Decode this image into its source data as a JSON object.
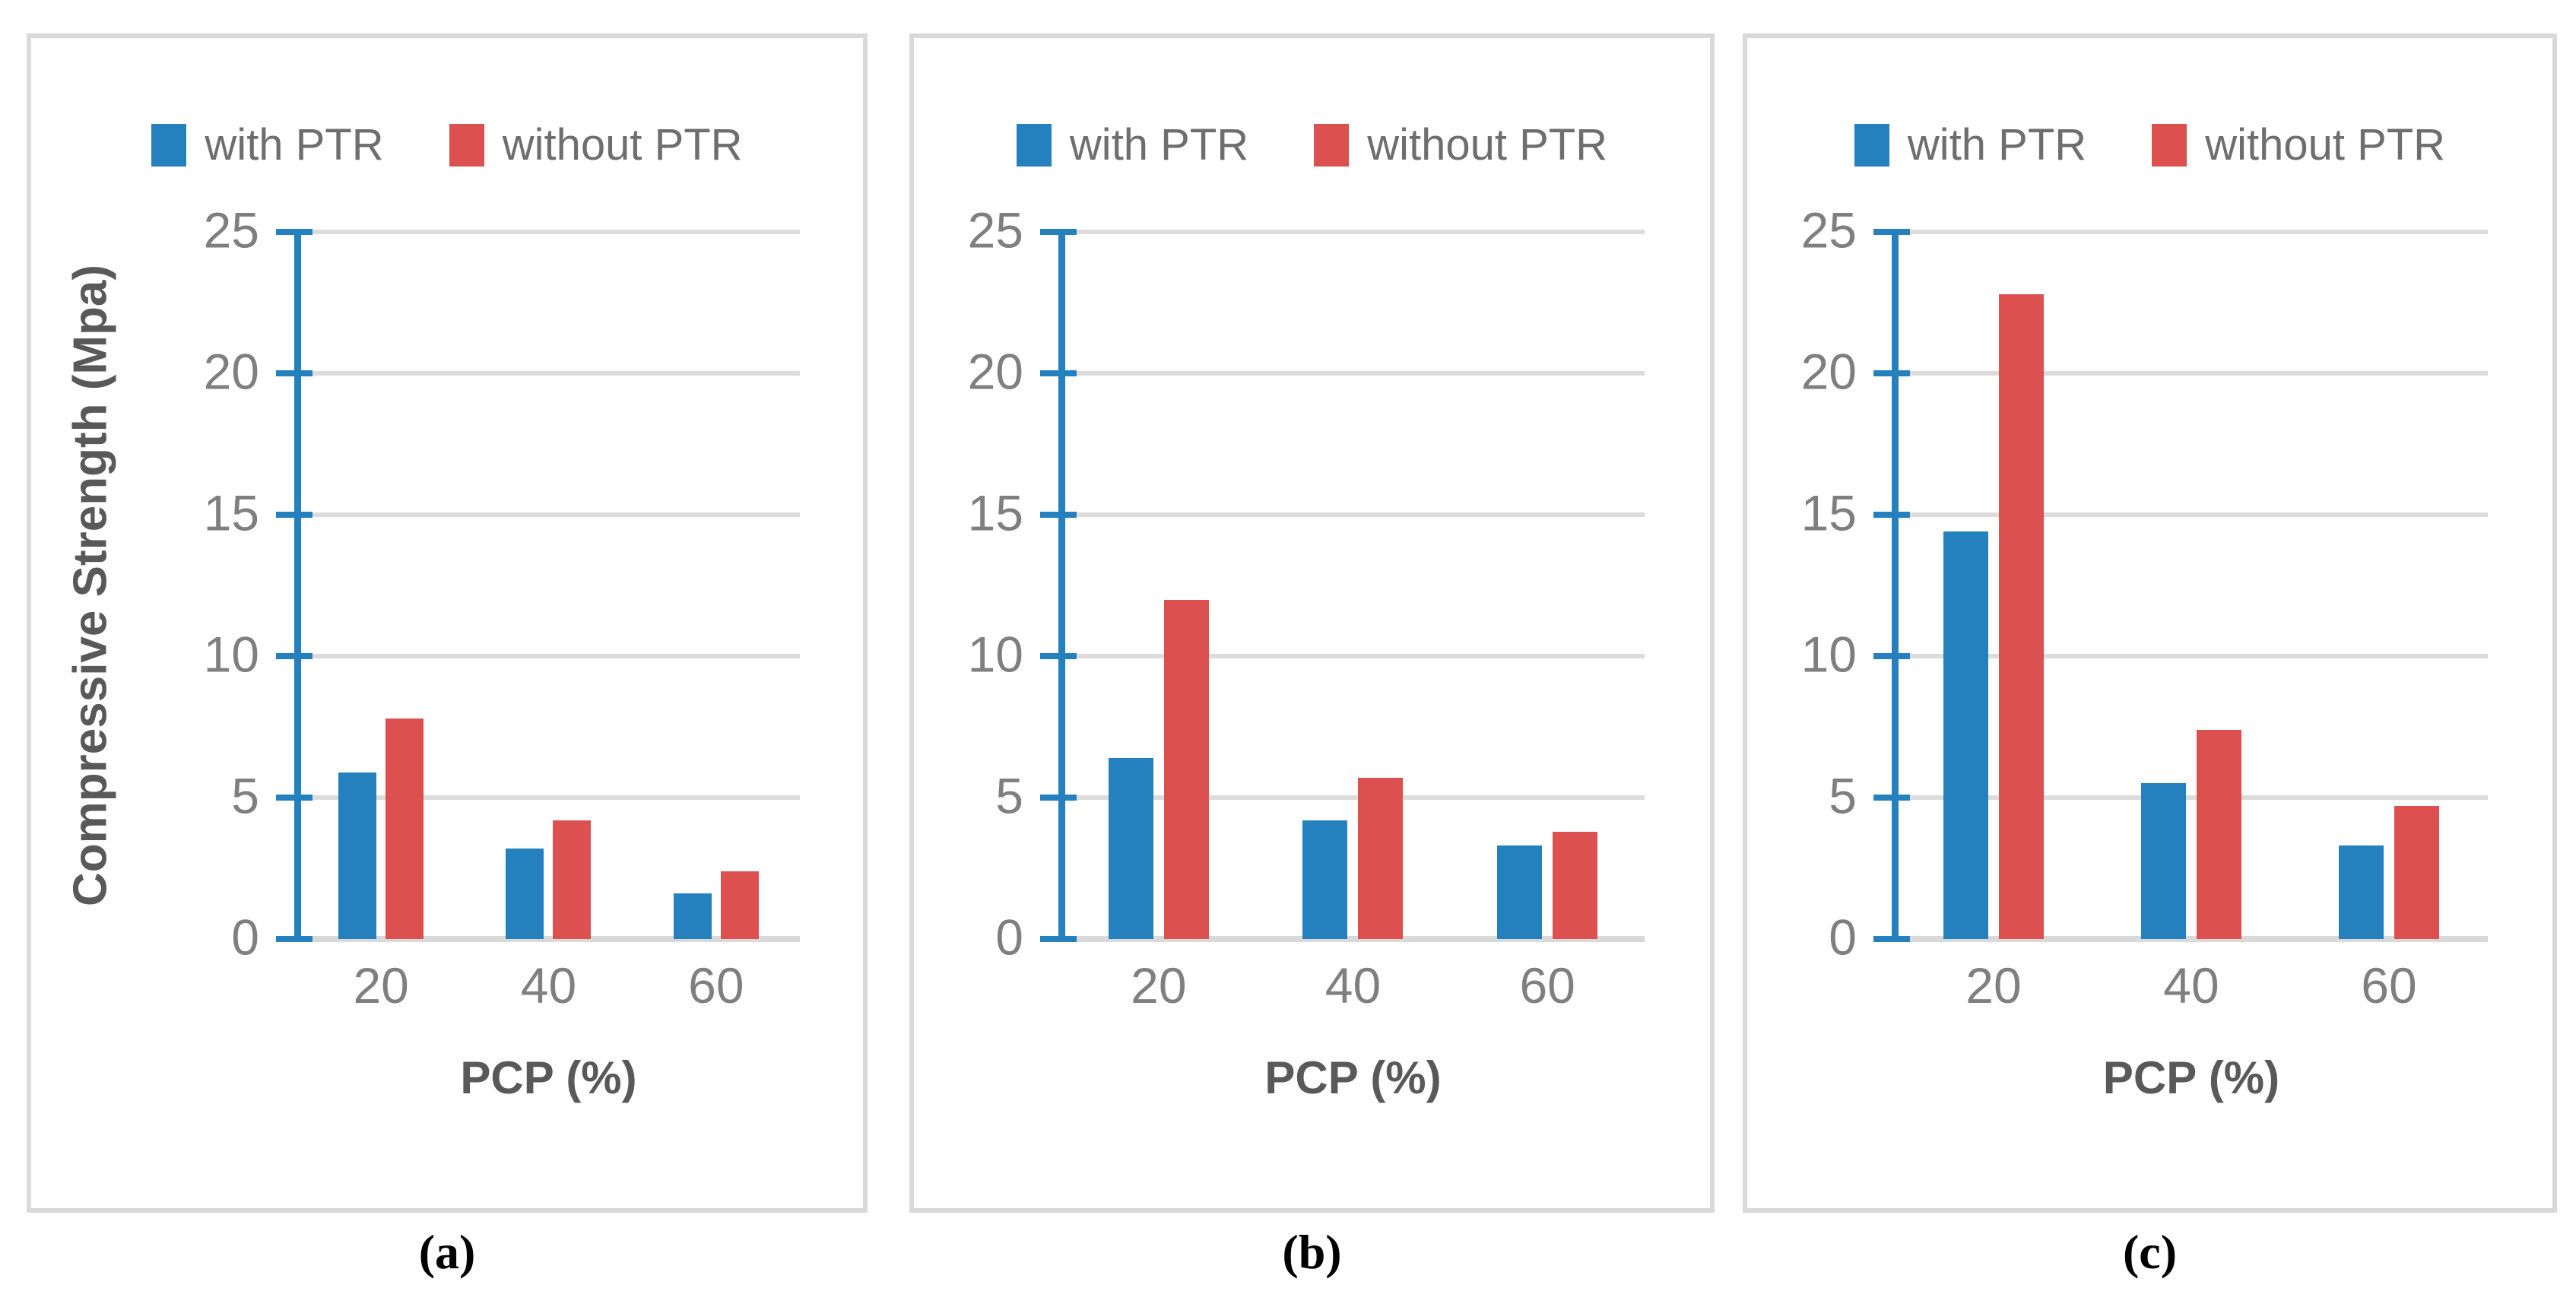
{
  "colors": {
    "bar_blue": "#2581BE",
    "bar_red": "#DC5050",
    "axis_blue": "#2581BE",
    "gridline": "#DCDCDC",
    "panel_border": "#D9D9D9",
    "tick_text": "#7F7F7F",
    "title_text": "#595959",
    "legend_text": "#6E6E6E",
    "caption_text": "#000000"
  },
  "legend": {
    "items": [
      {
        "label": "with PTR",
        "color": "#2581BE"
      },
      {
        "label": "without PTR",
        "color": "#DC5050"
      }
    ]
  },
  "axes": {
    "y_title": "Compressive Strength (Mpa)",
    "x_title": "PCP (%)",
    "y_ticks": [
      "0",
      "5",
      "10",
      "15",
      "20",
      "25"
    ],
    "y_tick_step": 5,
    "y_max": 25,
    "x_ticks": [
      "20",
      "40",
      "60"
    ]
  },
  "captions": [
    "(a)",
    "(b)",
    "(c)"
  ],
  "chart_data": [
    {
      "type": "bar",
      "panel": "a",
      "caption": "(a)",
      "xlabel": "PCP (%)",
      "ylabel": "Compressive Strength (Mpa)",
      "ylabel_visible": true,
      "categories": [
        "20",
        "40",
        "60"
      ],
      "ylim": [
        0,
        25
      ],
      "grid": true,
      "legend_position": "top",
      "series": [
        {
          "name": "with PTR",
          "color": "#2581BE",
          "values": [
            5.9,
            3.2,
            1.6
          ]
        },
        {
          "name": "without PTR",
          "color": "#DC5050",
          "values": [
            7.8,
            4.2,
            2.4
          ]
        }
      ]
    },
    {
      "type": "bar",
      "panel": "b",
      "caption": "(b)",
      "xlabel": "PCP (%)",
      "ylabel": "Compressive Strength (Mpa)",
      "ylabel_visible": false,
      "categories": [
        "20",
        "40",
        "60"
      ],
      "ylim": [
        0,
        25
      ],
      "grid": true,
      "legend_position": "top",
      "series": [
        {
          "name": "with PTR",
          "color": "#2581BE",
          "values": [
            6.4,
            4.2,
            3.3
          ]
        },
        {
          "name": "without PTR",
          "color": "#DC5050",
          "values": [
            12.0,
            5.7,
            3.8
          ]
        }
      ]
    },
    {
      "type": "bar",
      "panel": "c",
      "caption": "(c)",
      "xlabel": "PCP (%)",
      "ylabel": "Compressive Strength (Mpa)",
      "ylabel_visible": false,
      "categories": [
        "20",
        "40",
        "60"
      ],
      "ylim": [
        0,
        25
      ],
      "grid": true,
      "legend_position": "top",
      "series": [
        {
          "name": "with PTR",
          "color": "#2581BE",
          "values": [
            14.4,
            5.5,
            3.3
          ]
        },
        {
          "name": "without PTR",
          "color": "#DC5050",
          "values": [
            22.8,
            7.4,
            4.7
          ]
        }
      ]
    }
  ]
}
